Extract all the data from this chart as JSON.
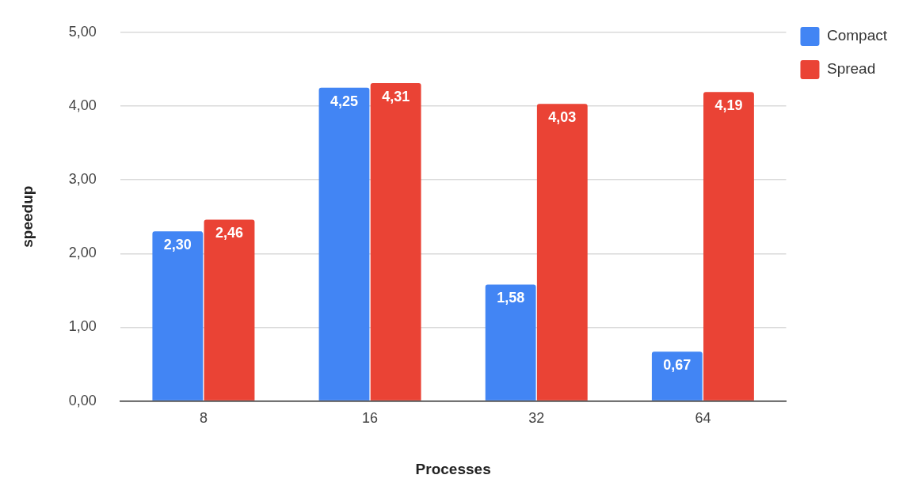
{
  "chart_data": {
    "type": "bar",
    "xlabel": "Processes",
    "ylabel": "speedup",
    "categories": [
      "8",
      "16",
      "32",
      "64"
    ],
    "series": [
      {
        "name": "Compact",
        "color": "#4285f4",
        "values": [
          2.3,
          4.25,
          1.58,
          0.67
        ],
        "value_labels": [
          "2,30",
          "4,25",
          "1,58",
          "0,67"
        ]
      },
      {
        "name": "Spread",
        "color": "#ea4335",
        "values": [
          2.46,
          4.31,
          4.03,
          4.19
        ],
        "value_labels": [
          "2,46",
          "4,31",
          "4,03",
          "4,19"
        ]
      }
    ],
    "ylim": [
      0,
      5
    ],
    "yticks": [
      {
        "value": 0,
        "label": "0,00"
      },
      {
        "value": 1,
        "label": "1,00"
      },
      {
        "value": 2,
        "label": "2,00"
      },
      {
        "value": 3,
        "label": "3,00"
      },
      {
        "value": 4,
        "label": "4,00"
      },
      {
        "value": 5,
        "label": "5,00"
      }
    ],
    "grid": "y",
    "legend": "top right"
  }
}
